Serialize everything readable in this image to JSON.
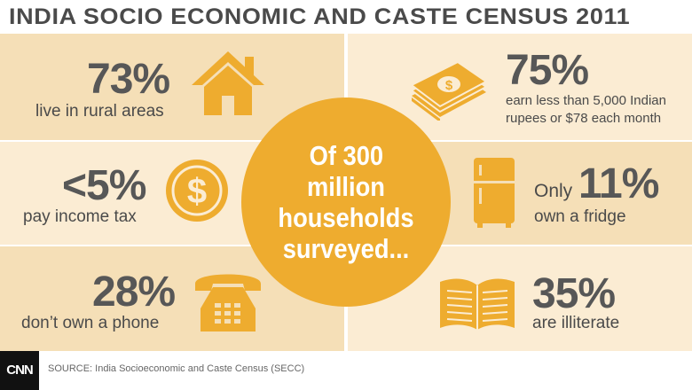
{
  "title": "INDIA SOCIO ECONOMIC AND CASTE CENSUS 2011",
  "center": {
    "lines": [
      "Of 300",
      "million",
      "households",
      "surveyed..."
    ]
  },
  "stats": {
    "rural": {
      "value": "73%",
      "label": "live in rural areas",
      "icon": "house-icon"
    },
    "income_tax": {
      "value": "<5%",
      "label": "pay income tax",
      "icon": "dollar-coin-icon"
    },
    "phone": {
      "value": "28%",
      "label": "don’t own a phone",
      "icon": "telephone-icon"
    },
    "earnings": {
      "value": "75%",
      "label_line1": "earn less than 5,000 Indian",
      "label_line2": "rupees or $78 each month",
      "icon": "money-stack-icon"
    },
    "fridge": {
      "prefix": "Only",
      "value": "11%",
      "label": "own a fridge",
      "icon": "fridge-icon"
    },
    "illiterate": {
      "value": "35%",
      "label": "are illiterate",
      "icon": "open-book-icon"
    }
  },
  "footer": {
    "logo": "CNN",
    "source": "SOURCE: India Socioeconomic and Caste Census (SECC)"
  },
  "colors": {
    "band_dark": "#f5dfb7",
    "band_light": "#fbecd3",
    "accent": "#eeac2f",
    "text": "#575757"
  }
}
